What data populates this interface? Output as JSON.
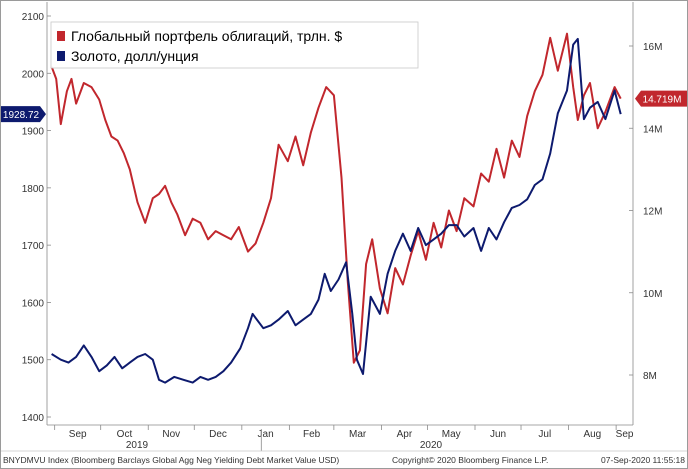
{
  "chart_data": {
    "type": "line",
    "title": "",
    "xlabel": "",
    "ylabel": "",
    "x_tick_labels": [
      "Sep",
      "Oct",
      "Nov",
      "Dec",
      "Jan",
      "Feb",
      "Mar",
      "Apr",
      "May",
      "Jun",
      "Jul",
      "Aug",
      "Sep"
    ],
    "year_labels": [
      "2019",
      "2020"
    ],
    "left_axis": {
      "ticks": [
        "1400",
        "1500",
        "1600",
        "1700",
        "1800",
        "1900",
        "2000",
        "2100"
      ],
      "range": [
        1400,
        2100
      ]
    },
    "right_axis": {
      "ticks": [
        "8M",
        "10M",
        "12M",
        "14M",
        "16M"
      ],
      "range": [
        7.5,
        17.0
      ],
      "unit": "trillion $"
    },
    "legend": {
      "placement": "top-left",
      "items": [
        "Глобальный портфель облигаций, трлн. $",
        "Золото, долл/унция"
      ]
    },
    "last_value_tags": {
      "gold": "1928.72",
      "bonds": "14.719M"
    },
    "footer": {
      "left": "BNYDMVU Index (Bloomberg Barclays Global Agg Neg Yielding Debt Market Value USD)",
      "center": "Copyright© 2020 Bloomberg Finance L.P.",
      "right": "07-Sep-2020 11:55:18"
    },
    "series": [
      {
        "id": "bonds",
        "name": "Глобальный портфель облигаций, трлн. $",
        "axis": "right",
        "color": "#c1272d",
        "x": [
          "2019-08-30",
          "2019-09-02",
          "2019-09-05",
          "2019-09-09",
          "2019-09-12",
          "2019-09-15",
          "2019-09-20",
          "2019-09-25",
          "2019-09-30",
          "2019-10-04",
          "2019-10-08",
          "2019-10-12",
          "2019-10-16",
          "2019-10-20",
          "2019-10-25",
          "2019-10-30",
          "2019-11-04",
          "2019-11-08",
          "2019-11-12",
          "2019-11-16",
          "2019-11-20",
          "2019-11-25",
          "2019-11-30",
          "2019-12-05",
          "2019-12-10",
          "2019-12-15",
          "2019-12-20",
          "2019-12-25",
          "2019-12-30",
          "2020-01-05",
          "2020-01-10",
          "2020-01-15",
          "2020-01-20",
          "2020-01-25",
          "2020-01-31",
          "2020-02-05",
          "2020-02-10",
          "2020-02-15",
          "2020-02-20",
          "2020-02-25",
          "2020-03-01",
          "2020-03-06",
          "2020-03-10",
          "2020-03-14",
          "2020-03-18",
          "2020-03-22",
          "2020-03-26",
          "2020-03-31",
          "2020-04-05",
          "2020-04-10",
          "2020-04-15",
          "2020-04-20",
          "2020-04-25",
          "2020-04-30",
          "2020-05-05",
          "2020-05-10",
          "2020-05-15",
          "2020-05-20",
          "2020-05-25",
          "2020-05-31",
          "2020-06-05",
          "2020-06-10",
          "2020-06-15",
          "2020-06-20",
          "2020-06-25",
          "2020-06-30",
          "2020-07-05",
          "2020-07-10",
          "2020-07-15",
          "2020-07-20",
          "2020-07-25",
          "2020-07-31",
          "2020-08-04",
          "2020-08-07",
          "2020-08-11",
          "2020-08-15",
          "2020-08-20",
          "2020-08-25",
          "2020-08-31",
          "2020-09-04"
        ],
        "y": [
          15.5,
          15.2,
          14.1,
          14.9,
          15.2,
          14.6,
          15.1,
          15.0,
          14.7,
          14.2,
          13.8,
          13.7,
          13.4,
          13.0,
          12.2,
          11.7,
          12.3,
          12.4,
          12.6,
          12.2,
          11.9,
          11.4,
          11.8,
          11.7,
          11.3,
          11.5,
          11.4,
          11.3,
          11.6,
          11.0,
          11.2,
          11.7,
          12.3,
          13.6,
          13.2,
          13.8,
          13.1,
          13.9,
          14.5,
          15.0,
          14.8,
          12.8,
          10.3,
          8.3,
          8.6,
          10.7,
          11.3,
          10.1,
          9.5,
          10.6,
          10.2,
          10.9,
          11.5,
          10.8,
          11.7,
          11.1,
          12.0,
          11.5,
          12.3,
          12.1,
          12.9,
          12.7,
          13.5,
          12.8,
          13.7,
          13.3,
          14.3,
          14.9,
          15.3,
          16.2,
          15.4,
          16.3,
          15.0,
          14.2,
          14.8,
          15.1,
          14.0,
          14.4,
          15.0,
          14.72
        ]
      },
      {
        "id": "gold",
        "name": "Золото, долл/унция",
        "axis": "left",
        "color": "#0d1a6e",
        "x": [
          "2019-08-30",
          "2019-09-05",
          "2019-09-10",
          "2019-09-15",
          "2019-09-20",
          "2019-09-25",
          "2019-09-30",
          "2019-10-05",
          "2019-10-10",
          "2019-10-15",
          "2019-10-20",
          "2019-10-25",
          "2019-10-30",
          "2019-11-04",
          "2019-11-08",
          "2019-11-12",
          "2019-11-18",
          "2019-11-24",
          "2019-11-30",
          "2019-12-05",
          "2019-12-10",
          "2019-12-15",
          "2019-12-20",
          "2019-12-25",
          "2019-12-31",
          "2020-01-05",
          "2020-01-08",
          "2020-01-15",
          "2020-01-20",
          "2020-01-25",
          "2020-01-31",
          "2020-02-05",
          "2020-02-10",
          "2020-02-15",
          "2020-02-20",
          "2020-02-24",
          "2020-02-28",
          "2020-03-04",
          "2020-03-09",
          "2020-03-13",
          "2020-03-16",
          "2020-03-20",
          "2020-03-25",
          "2020-03-31",
          "2020-04-05",
          "2020-04-10",
          "2020-04-15",
          "2020-04-20",
          "2020-04-25",
          "2020-04-30",
          "2020-05-05",
          "2020-05-10",
          "2020-05-15",
          "2020-05-20",
          "2020-05-25",
          "2020-05-31",
          "2020-06-05",
          "2020-06-10",
          "2020-06-15",
          "2020-06-20",
          "2020-06-25",
          "2020-06-30",
          "2020-07-05",
          "2020-07-10",
          "2020-07-15",
          "2020-07-20",
          "2020-07-25",
          "2020-07-31",
          "2020-08-04",
          "2020-08-07",
          "2020-08-11",
          "2020-08-15",
          "2020-08-20",
          "2020-08-25",
          "2020-08-31",
          "2020-09-04"
        ],
        "y": [
          1510,
          1500,
          1495,
          1505,
          1525,
          1505,
          1480,
          1490,
          1505,
          1485,
          1495,
          1505,
          1510,
          1500,
          1465,
          1460,
          1470,
          1465,
          1460,
          1470,
          1465,
          1470,
          1480,
          1495,
          1520,
          1555,
          1580,
          1555,
          1560,
          1570,
          1585,
          1560,
          1570,
          1580,
          1605,
          1650,
          1620,
          1640,
          1670,
          1580,
          1500,
          1475,
          1610,
          1580,
          1650,
          1690,
          1720,
          1690,
          1730,
          1700,
          1710,
          1720,
          1735,
          1735,
          1715,
          1730,
          1690,
          1730,
          1710,
          1740,
          1765,
          1770,
          1780,
          1805,
          1815,
          1860,
          1930,
          1970,
          2050,
          2060,
          1920,
          1940,
          1950,
          1920,
          1970,
          1928.72
        ]
      }
    ]
  }
}
